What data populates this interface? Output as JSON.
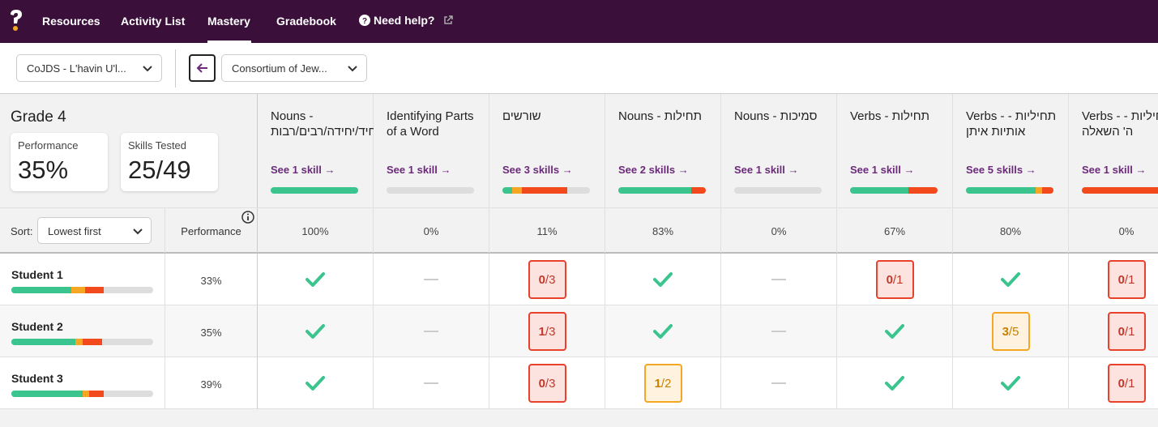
{
  "nav": {
    "items": [
      "Resources",
      "Activity List",
      "Mastery",
      "Gradebook"
    ],
    "active": "Mastery",
    "help": "Need help?"
  },
  "toolbar": {
    "class_select": "CoJDS - L'havin U'l...",
    "curriculum_select": "Consortium of Jew..."
  },
  "summary": {
    "grade": "Grade 4",
    "performance_label": "Performance",
    "performance_value": "35%",
    "skills_label": "Skills Tested",
    "skills_value": "25/49"
  },
  "sort": {
    "label": "Sort:",
    "value": "Lowest first",
    "performance_header": "Performance"
  },
  "colors": {
    "green": "#3cc48e",
    "orange": "#f5a623",
    "red": "#f24a1d",
    "gray": "#dddddd",
    "topbar": "#3a0f3a",
    "link": "#6b2a7a"
  },
  "columns": [
    {
      "title": "Nouns - יחיד/יחידה/רבים/רבות",
      "link": "See 1 skill →",
      "percent": "100%",
      "bar": [
        1,
        0,
        0
      ]
    },
    {
      "title": "Identifying Parts of a Word",
      "link": "See 1 skill →",
      "percent": "0%",
      "bar": [
        0,
        0,
        0
      ]
    },
    {
      "title": "שורשים",
      "link": "See 3 skills →",
      "percent": "11%",
      "bar": [
        0.11,
        0.11,
        0.52
      ]
    },
    {
      "title": "Nouns - תחילות",
      "link": "See 2 skills →",
      "percent": "83%",
      "bar": [
        0.83,
        0,
        0.17
      ]
    },
    {
      "title": "Nouns - סמיכות",
      "link": "See 1 skill →",
      "percent": "0%",
      "bar": [
        0,
        0,
        0
      ]
    },
    {
      "title": "Verbs - תחילות",
      "link": "See 1 skill →",
      "percent": "67%",
      "bar": [
        0.67,
        0,
        0.33
      ]
    },
    {
      "title": "Verbs - תחיליות - אותיות איתן",
      "link": "See 5 skills →",
      "percent": "80%",
      "bar": [
        0.8,
        0.07,
        0.13
      ]
    },
    {
      "title": "Verbs - תחיליות - ה' השאלה",
      "link": "See 1 skill →",
      "percent": "0%",
      "bar": [
        0,
        0,
        1
      ]
    }
  ],
  "students": [
    {
      "name": "Student 1",
      "performance": "33%",
      "bar": [
        0.42,
        0.1,
        0.13
      ],
      "cells": [
        {
          "type": "check"
        },
        {
          "type": "dash"
        },
        {
          "type": "score",
          "num": "0",
          "den": "/3",
          "color": "red"
        },
        {
          "type": "check"
        },
        {
          "type": "dash"
        },
        {
          "type": "score",
          "num": "0",
          "den": "/1",
          "color": "red"
        },
        {
          "type": "check"
        },
        {
          "type": "score",
          "num": "0",
          "den": "/1",
          "color": "red"
        }
      ]
    },
    {
      "name": "Student 2",
      "performance": "35%",
      "bar": [
        0.45,
        0.05,
        0.14
      ],
      "cells": [
        {
          "type": "check"
        },
        {
          "type": "dash"
        },
        {
          "type": "score",
          "num": "1",
          "den": "/3",
          "color": "red"
        },
        {
          "type": "check"
        },
        {
          "type": "dash"
        },
        {
          "type": "check"
        },
        {
          "type": "score",
          "num": "3",
          "den": "/5",
          "color": "orange"
        },
        {
          "type": "score",
          "num": "0",
          "den": "/1",
          "color": "red"
        }
      ]
    },
    {
      "name": "Student 3",
      "performance": "39%",
      "bar": [
        0.5,
        0.05,
        0.1
      ],
      "cells": [
        {
          "type": "check"
        },
        {
          "type": "dash"
        },
        {
          "type": "score",
          "num": "0",
          "den": "/3",
          "color": "red"
        },
        {
          "type": "score",
          "num": "1",
          "den": "/2",
          "color": "orange"
        },
        {
          "type": "dash"
        },
        {
          "type": "check"
        },
        {
          "type": "check"
        },
        {
          "type": "score",
          "num": "0",
          "den": "/1",
          "color": "red"
        }
      ]
    }
  ]
}
